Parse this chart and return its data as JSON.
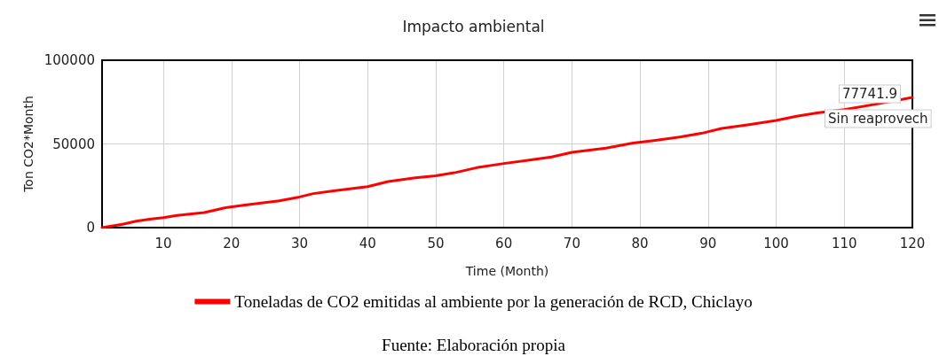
{
  "chart_data": {
    "type": "line",
    "title": "Impacto ambiental",
    "xlabel": "Time (Month)",
    "ylabel": "Ton CO2*Month",
    "x": [
      1,
      4,
      6,
      8,
      10,
      12,
      16,
      19,
      22,
      27,
      30,
      32,
      35,
      40,
      43,
      47,
      50,
      53,
      56,
      60,
      64,
      67,
      70,
      75,
      79,
      82,
      86,
      89,
      92,
      96,
      100,
      103,
      106,
      110,
      115,
      120
    ],
    "series": [
      {
        "name": "Toneladas de CO2 emitidas al ambiente por la generación de RCD, Chiclayo",
        "color": "#ff0000",
        "values": [
          0,
          2000,
          3800,
          5000,
          6000,
          7300,
          9000,
          11800,
          13500,
          16000,
          18300,
          20300,
          22000,
          24500,
          27500,
          29800,
          31000,
          33000,
          35800,
          38300,
          40500,
          42200,
          45000,
          47500,
          50500,
          52000,
          54200,
          56300,
          59300,
          61500,
          64000,
          66500,
          68500,
          70500,
          74000,
          77741.9
        ]
      }
    ],
    "xlim": [
      1,
      120
    ],
    "xticks": [
      10,
      20,
      30,
      40,
      50,
      60,
      70,
      80,
      90,
      100,
      110,
      120
    ],
    "ylim": [
      0,
      100000
    ],
    "yticks": [
      0,
      50000,
      100000
    ],
    "grid": true,
    "legend": "bottom",
    "marker": "none",
    "line_style": "solid",
    "annotations": [
      {
        "text": "77741.9",
        "x": 120,
        "y": 77741.9
      },
      {
        "text": "Sin reaprovech",
        "x": 120,
        "y": 77741.9
      },
      "Fuente: Elaboración propia"
    ]
  }
}
